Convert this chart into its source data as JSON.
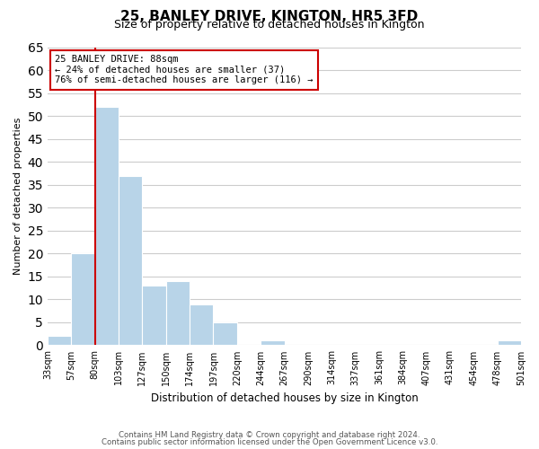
{
  "title": "25, BANLEY DRIVE, KINGTON, HR5 3FD",
  "subtitle": "Size of property relative to detached houses in Kington",
  "xlabel": "Distribution of detached houses by size in Kington",
  "ylabel": "Number of detached properties",
  "bar_color": "#b8d4e8",
  "marker_line_color": "#cc0000",
  "background_color": "#ffffff",
  "grid_color": "#cccccc",
  "annotation_border_color": "#cc0000",
  "bin_labels": [
    "33sqm",
    "57sqm",
    "80sqm",
    "103sqm",
    "127sqm",
    "150sqm",
    "174sqm",
    "197sqm",
    "220sqm",
    "244sqm",
    "267sqm",
    "290sqm",
    "314sqm",
    "337sqm",
    "361sqm",
    "384sqm",
    "407sqm",
    "431sqm",
    "454sqm",
    "478sqm",
    "501sqm"
  ],
  "counts": [
    2,
    20,
    52,
    37,
    13,
    14,
    9,
    5,
    0,
    1,
    0,
    0,
    0,
    0,
    0,
    0,
    0,
    0,
    0,
    1
  ],
  "annotation_line1": "25 BANLEY DRIVE: 88sqm",
  "annotation_line2": "← 24% of detached houses are smaller (37)",
  "annotation_line3": "76% of semi-detached houses are larger (116) →",
  "ylim": [
    0,
    65
  ],
  "yticks": [
    0,
    5,
    10,
    15,
    20,
    25,
    30,
    35,
    40,
    45,
    50,
    55,
    60,
    65
  ],
  "footer_line1": "Contains HM Land Registry data © Crown copyright and database right 2024.",
  "footer_line2": "Contains public sector information licensed under the Open Government Licence v3.0."
}
